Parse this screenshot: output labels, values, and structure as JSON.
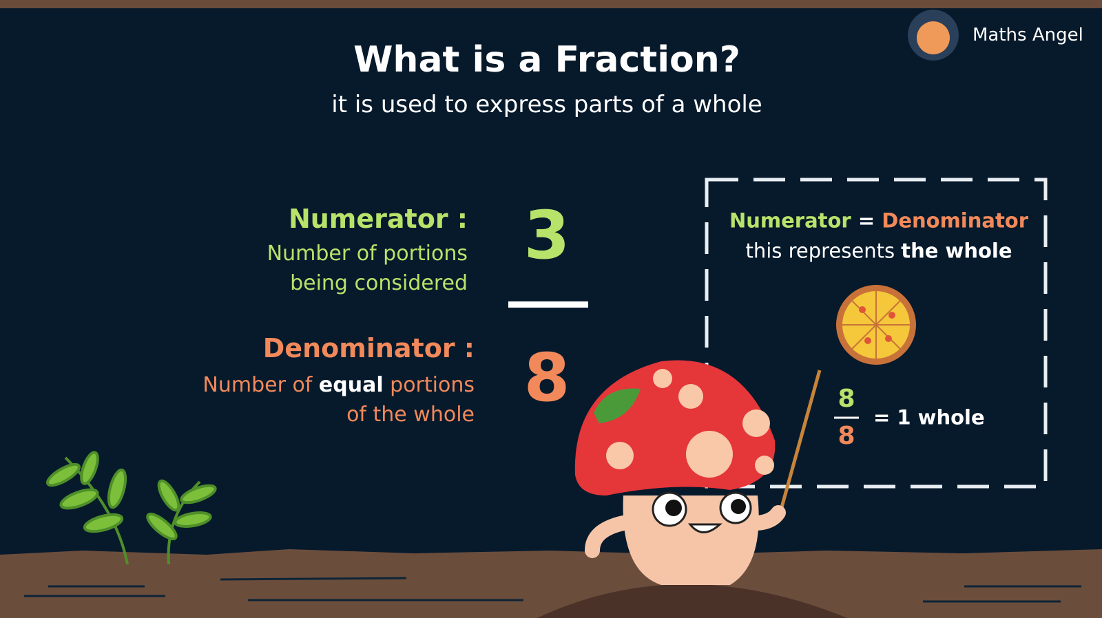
{
  "brand": "Maths Angel",
  "header": {
    "title": "What is a Fraction?",
    "subtitle": "it is used to express parts of a whole"
  },
  "numerator": {
    "label": "Numerator :",
    "description": [
      "Number of portions",
      "being considered"
    ],
    "value": 3
  },
  "denominator": {
    "label": "Denominator :",
    "description": {
      "before": "Number of ",
      "bold": "equal",
      "after": " portions",
      "line2": "of the whole"
    },
    "value": 8
  },
  "whole_box": {
    "left": "Numerator",
    "equals": "=",
    "right": "Denominator",
    "line2_before": "this represents ",
    "line2_bold": "the whole",
    "fraction": {
      "numerator": 8,
      "denominator": 8
    },
    "result": "= 1 whole"
  }
}
